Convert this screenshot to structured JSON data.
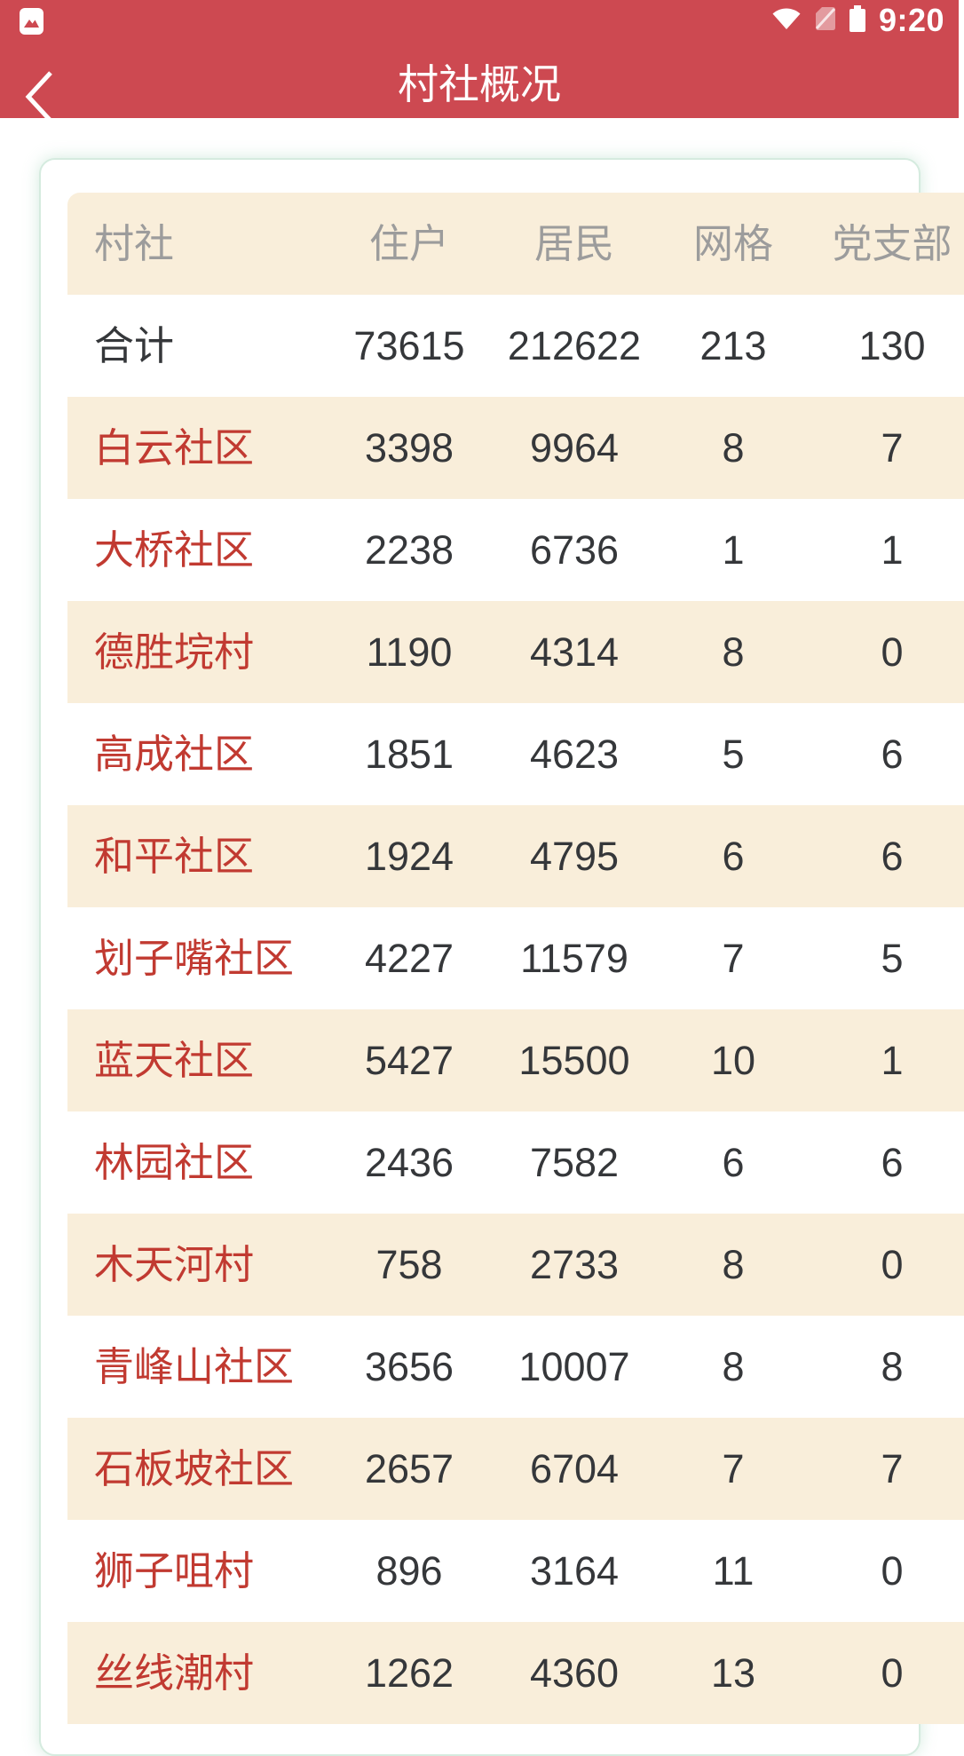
{
  "status_bar": {
    "time": "9:20",
    "icons": [
      "image-notification",
      "wifi",
      "no-sim",
      "battery"
    ]
  },
  "app_bar": {
    "title": "村社概况",
    "back_label": "back"
  },
  "table": {
    "columns": [
      {
        "key": "name",
        "label": "村社"
      },
      {
        "key": "households",
        "label": "住户"
      },
      {
        "key": "residents",
        "label": "居民"
      },
      {
        "key": "grids",
        "label": "网格"
      },
      {
        "key": "party",
        "label": "党支部"
      }
    ],
    "rows": [
      {
        "name": "合计",
        "households": "73615",
        "residents": "212622",
        "grids": "213",
        "party": "130",
        "is_total": true
      },
      {
        "name": "白云社区",
        "households": "3398",
        "residents": "9964",
        "grids": "8",
        "party": "7"
      },
      {
        "name": "大桥社区",
        "households": "2238",
        "residents": "6736",
        "grids": "1",
        "party": "1"
      },
      {
        "name": "德胜垸村",
        "households": "1190",
        "residents": "4314",
        "grids": "8",
        "party": "0"
      },
      {
        "name": "高成社区",
        "households": "1851",
        "residents": "4623",
        "grids": "5",
        "party": "6"
      },
      {
        "name": "和平社区",
        "households": "1924",
        "residents": "4795",
        "grids": "6",
        "party": "6"
      },
      {
        "name": "划子嘴社区",
        "households": "4227",
        "residents": "11579",
        "grids": "7",
        "party": "5"
      },
      {
        "name": "蓝天社区",
        "households": "5427",
        "residents": "15500",
        "grids": "10",
        "party": "1"
      },
      {
        "name": "林园社区",
        "households": "2436",
        "residents": "7582",
        "grids": "6",
        "party": "6"
      },
      {
        "name": "木天河村",
        "households": "758",
        "residents": "2733",
        "grids": "8",
        "party": "0"
      },
      {
        "name": "青峰山社区",
        "households": "3656",
        "residents": "10007",
        "grids": "8",
        "party": "8"
      },
      {
        "name": "石板坡社区",
        "households": "2657",
        "residents": "6704",
        "grids": "7",
        "party": "7"
      },
      {
        "name": "狮子咀村",
        "households": "896",
        "residents": "3164",
        "grids": "11",
        "party": "0"
      },
      {
        "name": "丝线潮村",
        "households": "1262",
        "residents": "4360",
        "grids": "13",
        "party": "0"
      }
    ]
  },
  "colors": {
    "app_bar_red": "#cd4951",
    "row_cream": "#f9eeda",
    "name_red": "#c13a31",
    "text_dark": "#35373a",
    "header_gray": "#9c9c9c",
    "card_border": "#d5ebdf"
  }
}
